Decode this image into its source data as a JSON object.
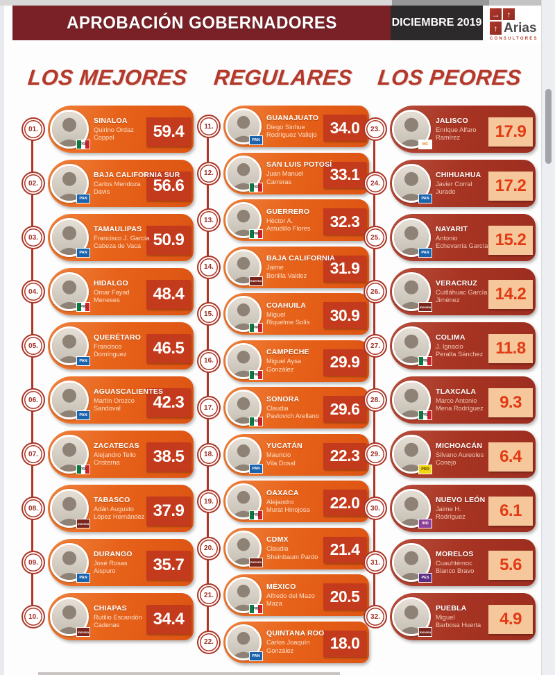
{
  "header": {
    "title": "APROBACIÓN GOBERNADORES",
    "date": "DICIEMBRE 2019",
    "logo_name": "Arias",
    "logo_subtitle": "CONSULTORES"
  },
  "colors": {
    "header_bar": "#7a2127",
    "date_box": "#2d2a2b",
    "accent_red": "#b5392b",
    "pill_orange": "#ef6e1f",
    "score_box_red": "#c43a1c",
    "pill_dark_red": "#b23b27",
    "score_box_peach": "#f5c79b",
    "score_text_peach": "#e23a14"
  },
  "parties": {
    "PRI": {
      "label": "PRI"
    },
    "PAN": {
      "label": "PAN"
    },
    "MORENA": {
      "label": "morena"
    },
    "MC": {
      "label": "MC"
    },
    "PRD": {
      "label": "PRD"
    },
    "IND": {
      "label": "IND"
    },
    "PES": {
      "label": "PES"
    }
  },
  "columns": [
    {
      "title": "LOS MEJORES",
      "theme": "orange",
      "entries": [
        {
          "rank": "01.",
          "state": "SINALOA",
          "governor": "Quirino Ordaz\nCoppel",
          "party": "PRI",
          "score": "59.4"
        },
        {
          "rank": "02.",
          "state": "BAJA CALIFORNIA SUR",
          "governor": "Carlos Mendoza\nDavis",
          "party": "PAN",
          "score": "56.6"
        },
        {
          "rank": "03.",
          "state": "TAMAULIPAS",
          "governor": "Francisco J. García\nCabeza de Vaca",
          "party": "PAN",
          "score": "50.9"
        },
        {
          "rank": "04.",
          "state": "HIDALGO",
          "governor": "Omar Fayad\nMeneses",
          "party": "PRI",
          "score": "48.4"
        },
        {
          "rank": "05.",
          "state": "QUERÉTARO",
          "governor": "Francisco\nDomínguez",
          "party": "PAN",
          "score": "46.5"
        },
        {
          "rank": "06.",
          "state": "AGUASCALIENTES",
          "governor": "Martín Orozco\nSandoval",
          "party": "PAN",
          "score": "42.3"
        },
        {
          "rank": "07.",
          "state": "ZACATECAS",
          "governor": "Alejandro Tello\nCristerna",
          "party": "PRI",
          "score": "38.5"
        },
        {
          "rank": "08.",
          "state": "TABASCO",
          "governor": "Adán Augusto\nLópez Hernández",
          "party": "MORENA",
          "score": "37.9"
        },
        {
          "rank": "09.",
          "state": "DURANGO",
          "governor": "José Rosas\nAispuro",
          "party": "PAN",
          "score": "35.7"
        },
        {
          "rank": "10.",
          "state": "CHIAPAS",
          "governor": "Rutilio Escandón\nCadenas",
          "party": "MORENA",
          "score": "34.4"
        }
      ]
    },
    {
      "title": "REGULARES",
      "theme": "orange",
      "entries": [
        {
          "rank": "11.",
          "state": "GUANAJUATO",
          "governor": "Diego Sinhue\nRodríguez Vallejo",
          "party": "PAN",
          "score": "34.0"
        },
        {
          "rank": "12.",
          "state": "SAN LUIS POTOSÍ",
          "governor": "Juan Manuel\nCarreras",
          "party": "PRI",
          "score": "33.1"
        },
        {
          "rank": "13.",
          "state": "GUERRERO",
          "governor": "Héctor A.\nAstudillo Flores",
          "party": "PRI",
          "score": "32.3"
        },
        {
          "rank": "14.",
          "state": "BAJA CALIFORNIA",
          "governor": "Jaime\nBonilla Valdez",
          "party": "MORENA",
          "score": "31.9"
        },
        {
          "rank": "15.",
          "state": "COAHUILA",
          "governor": "Miguel\nRiquelme Solís",
          "party": "PRI",
          "score": "30.9"
        },
        {
          "rank": "16.",
          "state": "CAMPECHE",
          "governor": "Miguel Aysa\nGonzález",
          "party": "PRI",
          "score": "29.9"
        },
        {
          "rank": "17.",
          "state": "SONORA",
          "governor": "Claudia\nPavlovich Arellano",
          "party": "PRI",
          "score": "29.6"
        },
        {
          "rank": "18.",
          "state": "YUCATÁN",
          "governor": "Mauricio\nVila Dosal",
          "party": "PAN",
          "score": "22.3"
        },
        {
          "rank": "19.",
          "state": "OAXACA",
          "governor": "Alejandro\nMurat Hinojosa",
          "party": "PRI",
          "score": "22.0"
        },
        {
          "rank": "20.",
          "state": "CDMX",
          "governor": "Claudia\nSheinbaum Pardo",
          "party": "MORENA",
          "score": "21.4"
        },
        {
          "rank": "21.",
          "state": "MÉXICO",
          "governor": "Alfredo del Mazo\nMaza",
          "party": "PRI",
          "score": "20.5"
        },
        {
          "rank": "22.",
          "state": "QUINTANA ROO",
          "governor": "Carlos Joaquín\nGonzález",
          "party": "PAN",
          "score": "18.0"
        }
      ]
    },
    {
      "title": "LOS PEORES",
      "theme": "dark",
      "entries": [
        {
          "rank": "23.",
          "state": "JALISCO",
          "governor": "Enrique Alfaro\nRamírez",
          "party": "MC",
          "score": "17.9"
        },
        {
          "rank": "24.",
          "state": "CHIHUAHUA",
          "governor": "Javier Corral\nJurado",
          "party": "PAN",
          "score": "17.2"
        },
        {
          "rank": "25.",
          "state": "NAYARIT",
          "governor": "Antonio\nEchevarría García",
          "party": "PAN",
          "score": "15.2"
        },
        {
          "rank": "26.",
          "state": "VERACRUZ",
          "governor": "Cuitláhuac García\nJiménez",
          "party": "MORENA",
          "score": "14.2"
        },
        {
          "rank": "27.",
          "state": "COLIMA",
          "governor": "J. Ignacio\nPeralta Sánchez",
          "party": "PRI",
          "score": "11.8"
        },
        {
          "rank": "28.",
          "state": "TLAXCALA",
          "governor": "Marco Antonio\nMena Rodríguez",
          "party": "PRI",
          "score": "9.3"
        },
        {
          "rank": "29.",
          "state": "MICHOACÁN",
          "governor": "Silvano Aureoles\nConejo",
          "party": "PRD",
          "score": "6.4"
        },
        {
          "rank": "30.",
          "state": "NUEVO LEÓN",
          "governor": "Jaime H.\nRodríguez",
          "party": "IND",
          "score": "6.1"
        },
        {
          "rank": "31.",
          "state": "MORELOS",
          "governor": "Cuauhtémoc\nBlanco Bravo",
          "party": "PES",
          "score": "5.6"
        },
        {
          "rank": "32.",
          "state": "PUEBLA",
          "governor": "Miguel\nBarbosa Huerta",
          "party": "MORENA",
          "score": "4.9"
        }
      ]
    }
  ],
  "chart_data": {
    "type": "table",
    "title": "APROBACIÓN GOBERNADORES — DICIEMBRE 2019",
    "columns": [
      "rank",
      "state",
      "governor",
      "party",
      "approval"
    ],
    "groups": {
      "LOS MEJORES": [
        1,
        10
      ],
      "REGULARES": [
        11,
        22
      ],
      "LOS PEORES": [
        23,
        32
      ]
    },
    "rows": [
      [
        1,
        "Sinaloa",
        "Quirino Ordaz Coppel",
        "PRI",
        59.4
      ],
      [
        2,
        "Baja California Sur",
        "Carlos Mendoza Davis",
        "PAN",
        56.6
      ],
      [
        3,
        "Tamaulipas",
        "Francisco J. García Cabeza de Vaca",
        "PAN",
        50.9
      ],
      [
        4,
        "Hidalgo",
        "Omar Fayad Meneses",
        "PRI",
        48.4
      ],
      [
        5,
        "Querétaro",
        "Francisco Domínguez",
        "PAN",
        46.5
      ],
      [
        6,
        "Aguascalientes",
        "Martín Orozco Sandoval",
        "PAN",
        42.3
      ],
      [
        7,
        "Zacatecas",
        "Alejandro Tello Cristerna",
        "PRI",
        38.5
      ],
      [
        8,
        "Tabasco",
        "Adán Augusto López Hernández",
        "MORENA",
        37.9
      ],
      [
        9,
        "Durango",
        "José Rosas Aispuro",
        "PAN",
        35.7
      ],
      [
        10,
        "Chiapas",
        "Rutilio Escandón Cadenas",
        "MORENA",
        34.4
      ],
      [
        11,
        "Guanajuato",
        "Diego Sinhue Rodríguez Vallejo",
        "PAN",
        34.0
      ],
      [
        12,
        "San Luis Potosí",
        "Juan Manuel Carreras",
        "PRI",
        33.1
      ],
      [
        13,
        "Guerrero",
        "Héctor A. Astudillo Flores",
        "PRI",
        32.3
      ],
      [
        14,
        "Baja California",
        "Jaime Bonilla Valdez",
        "MORENA",
        31.9
      ],
      [
        15,
        "Coahuila",
        "Miguel Riquelme Solís",
        "PRI",
        30.9
      ],
      [
        16,
        "Campeche",
        "Miguel Aysa González",
        "PRI",
        29.9
      ],
      [
        17,
        "Sonora",
        "Claudia Pavlovich Arellano",
        "PRI",
        29.6
      ],
      [
        18,
        "Yucatán",
        "Mauricio Vila Dosal",
        "PAN",
        22.3
      ],
      [
        19,
        "Oaxaca",
        "Alejandro Murat Hinojosa",
        "PRI",
        22.0
      ],
      [
        20,
        "CDMX",
        "Claudia Sheinbaum Pardo",
        "MORENA",
        21.4
      ],
      [
        21,
        "México",
        "Alfredo del Mazo Maza",
        "PRI",
        20.5
      ],
      [
        22,
        "Quintana Roo",
        "Carlos Joaquín González",
        "PAN",
        18.0
      ],
      [
        23,
        "Jalisco",
        "Enrique Alfaro Ramírez",
        "MC",
        17.9
      ],
      [
        24,
        "Chihuahua",
        "Javier Corral Jurado",
        "PAN",
        17.2
      ],
      [
        25,
        "Nayarit",
        "Antonio Echevarría García",
        "PAN",
        15.2
      ],
      [
        26,
        "Veracruz",
        "Cuitláhuac García Jiménez",
        "MORENA",
        14.2
      ],
      [
        27,
        "Colima",
        "J. Ignacio Peralta Sánchez",
        "PRI",
        11.8
      ],
      [
        28,
        "Tlaxcala",
        "Marco Antonio Mena Rodríguez",
        "PRI",
        9.3
      ],
      [
        29,
        "Michoacán",
        "Silvano Aureoles Conejo",
        "PRD",
        6.4
      ],
      [
        30,
        "Nuevo León",
        "Jaime H. Rodríguez",
        "IND",
        6.1
      ],
      [
        31,
        "Morelos",
        "Cuauhtémoc Blanco Bravo",
        "PES",
        5.6
      ],
      [
        32,
        "Puebla",
        "Miguel Barbosa Huerta",
        "MORENA",
        4.9
      ]
    ]
  }
}
